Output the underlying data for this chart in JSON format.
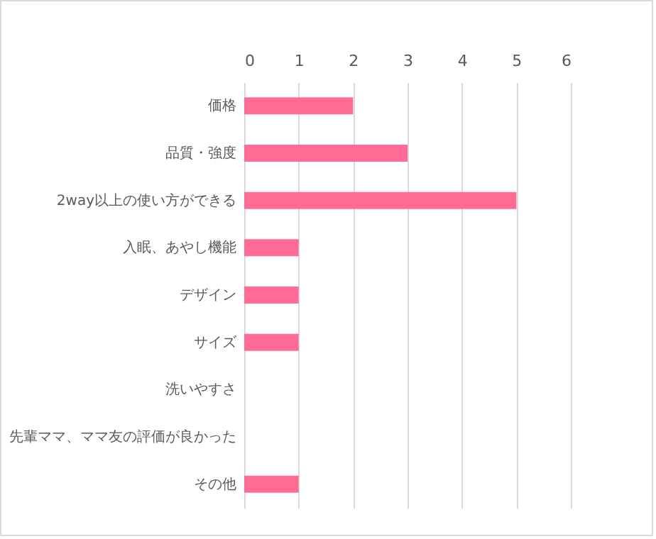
{
  "chart_data": {
    "type": "bar",
    "orientation": "horizontal",
    "categories": [
      "価格",
      "品質・強度",
      "2way以上の使い方ができる",
      "入眠、あやし機能",
      "デザイン",
      "サイズ",
      "洗いやすさ",
      "先輩ママ、ママ友の評価が良かった",
      "その他"
    ],
    "values": [
      2,
      3,
      5,
      1,
      1,
      1,
      0,
      0,
      1
    ],
    "color": "#ff6b95",
    "xlim": [
      0,
      6
    ],
    "xticks": [
      0,
      1,
      2,
      3,
      4,
      5,
      6
    ],
    "grid": "x"
  }
}
